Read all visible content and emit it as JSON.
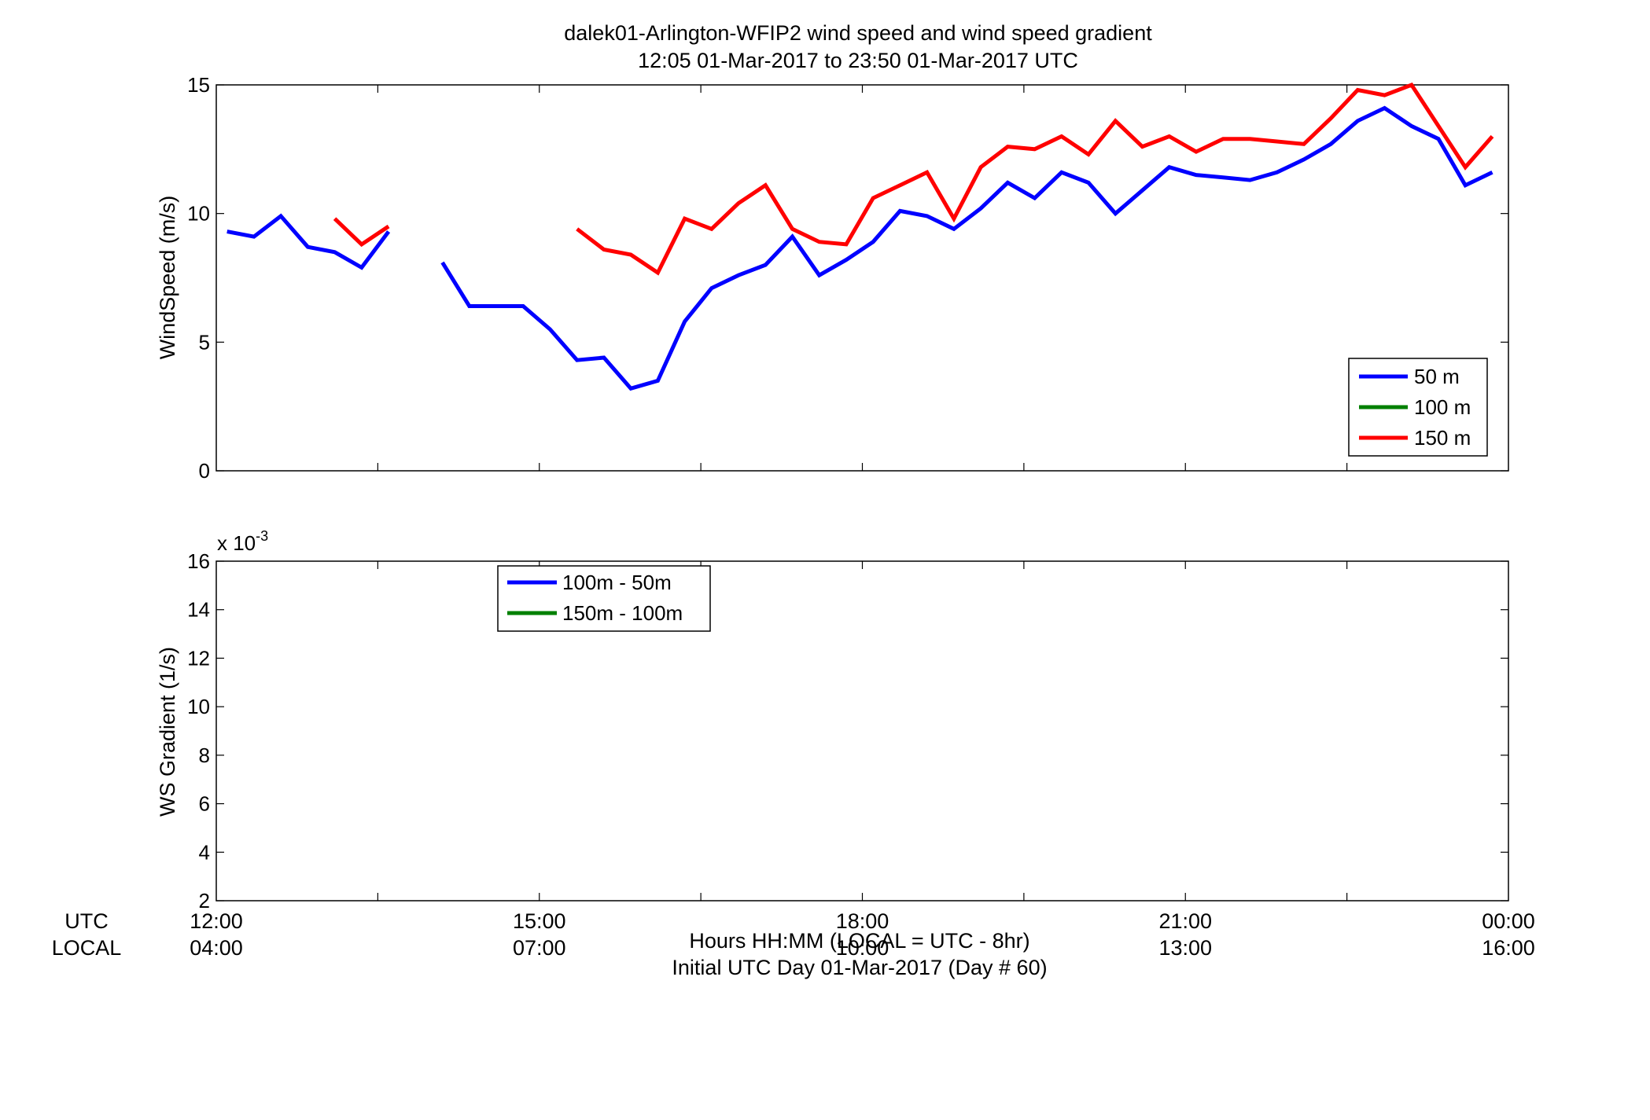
{
  "figure": {
    "title_line1": "dalek01-Arlington-WFIP2  wind speed and wind speed gradient",
    "title_line2": "12:05 01-Mar-2017 to 23:50 01-Mar-2017  UTC",
    "xlabel_line1": "Hours HH:MM  (LOCAL = UTC - 8hr)",
    "xlabel_line2": "Initial UTC Day 01-Mar-2017 (Day # 60)",
    "utc_row_label": "UTC",
    "local_row_label": "LOCAL",
    "utc_ticks": [
      "12:00",
      "15:00",
      "18:00",
      "21:00",
      "00:00"
    ],
    "local_ticks": [
      "04:00",
      "07:00",
      "10:00",
      "13:00",
      "16:00"
    ]
  },
  "chart_data": [
    {
      "type": "line",
      "ylabel": "WindSpeed (m/s)",
      "xlim_hours": [
        12,
        24
      ],
      "ylim": [
        0,
        15
      ],
      "yticks": [
        0,
        5,
        10,
        15
      ],
      "grid": false,
      "legend_position": "bottom-right",
      "series": [
        {
          "name": "50 m",
          "color": "#0000ff",
          "segments": [
            [
              [
                12.1,
                9.3
              ],
              [
                12.35,
                9.1
              ],
              [
                12.6,
                9.9
              ],
              [
                12.85,
                8.7
              ],
              [
                13.1,
                8.5
              ],
              [
                13.35,
                7.9
              ],
              [
                13.6,
                9.3
              ]
            ],
            [
              [
                14.1,
                8.1
              ],
              [
                14.35,
                6.4
              ],
              [
                14.6,
                6.4
              ],
              [
                14.85,
                6.4
              ],
              [
                15.1,
                5.5
              ],
              [
                15.35,
                4.3
              ],
              [
                15.6,
                4.4
              ],
              [
                15.85,
                3.2
              ],
              [
                16.1,
                3.5
              ],
              [
                16.35,
                5.8
              ],
              [
                16.6,
                7.1
              ],
              [
                16.85,
                7.6
              ],
              [
                17.1,
                8.0
              ],
              [
                17.35,
                9.1
              ],
              [
                17.6,
                7.6
              ],
              [
                17.85,
                8.2
              ],
              [
                18.1,
                8.9
              ],
              [
                18.35,
                10.1
              ],
              [
                18.6,
                9.9
              ],
              [
                18.85,
                9.4
              ],
              [
                19.1,
                10.2
              ],
              [
                19.35,
                11.2
              ],
              [
                19.6,
                10.6
              ],
              [
                19.85,
                11.6
              ],
              [
                20.1,
                11.2
              ],
              [
                20.35,
                10.0
              ],
              [
                20.6,
                10.9
              ],
              [
                20.85,
                11.8
              ],
              [
                21.1,
                11.5
              ],
              [
                21.35,
                11.4
              ],
              [
                21.6,
                11.3
              ],
              [
                21.85,
                11.6
              ],
              [
                22.1,
                12.1
              ],
              [
                22.35,
                12.7
              ],
              [
                22.6,
                13.6
              ],
              [
                22.85,
                14.1
              ],
              [
                23.1,
                13.4
              ],
              [
                23.35,
                12.9
              ],
              [
                23.6,
                11.1
              ],
              [
                23.85,
                11.6
              ]
            ]
          ]
        },
        {
          "name": "100 m",
          "color": "#008000",
          "segments": []
        },
        {
          "name": "150 m",
          "color": "#ff0000",
          "segments": [
            [
              [
                13.1,
                9.8
              ],
              [
                13.35,
                8.8
              ],
              [
                13.6,
                9.5
              ]
            ],
            [
              [
                15.35,
                9.4
              ],
              [
                15.6,
                8.6
              ],
              [
                15.85,
                8.4
              ],
              [
                16.1,
                7.7
              ],
              [
                16.35,
                9.8
              ],
              [
                16.6,
                9.4
              ],
              [
                16.85,
                10.4
              ],
              [
                17.1,
                11.1
              ],
              [
                17.35,
                9.4
              ],
              [
                17.6,
                8.9
              ],
              [
                17.85,
                8.8
              ],
              [
                18.1,
                10.6
              ],
              [
                18.35,
                11.1
              ],
              [
                18.6,
                11.6
              ],
              [
                18.85,
                9.8
              ],
              [
                19.1,
                11.8
              ],
              [
                19.35,
                12.6
              ],
              [
                19.6,
                12.5
              ],
              [
                19.85,
                13.0
              ],
              [
                20.1,
                12.3
              ],
              [
                20.35,
                13.6
              ],
              [
                20.6,
                12.6
              ],
              [
                20.85,
                13.0
              ],
              [
                21.1,
                12.4
              ],
              [
                21.35,
                12.9
              ],
              [
                21.6,
                12.9
              ],
              [
                21.85,
                12.8
              ],
              [
                22.1,
                12.7
              ],
              [
                22.35,
                13.7
              ],
              [
                22.6,
                14.8
              ],
              [
                22.85,
                14.6
              ],
              [
                23.1,
                15.0
              ],
              [
                23.35,
                13.4
              ],
              [
                23.6,
                11.8
              ],
              [
                23.85,
                13.0
              ]
            ]
          ]
        }
      ]
    },
    {
      "type": "line",
      "ylabel": "WS Gradient (1/s)",
      "y_multiplier_base": "x 10",
      "y_multiplier_exponent": "-3",
      "xlim_hours": [
        12,
        24
      ],
      "ylim": [
        2,
        16
      ],
      "yticks": [
        2,
        4,
        6,
        8,
        10,
        12,
        14,
        16
      ],
      "grid": false,
      "legend_position": "top-left",
      "series": [
        {
          "name": "100m - 50m",
          "color": "#0000ff",
          "segments": []
        },
        {
          "name": "150m - 100m",
          "color": "#008000",
          "segments": []
        }
      ]
    }
  ]
}
